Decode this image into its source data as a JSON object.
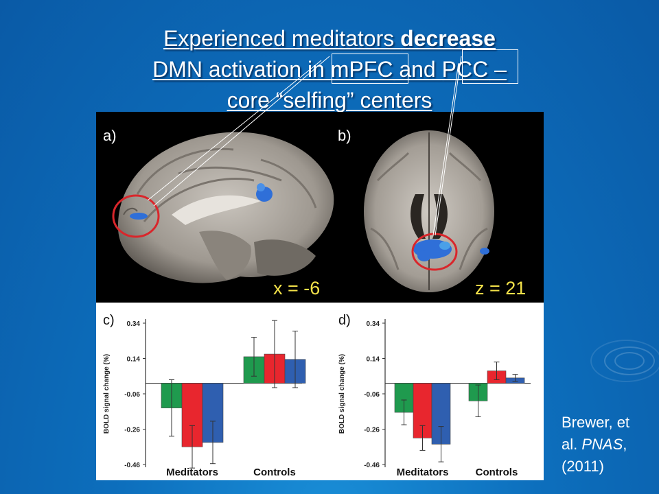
{
  "slide": {
    "title_line1_a": "Experienced meditators ",
    "title_line1_b": "decrease",
    "title_line2_a": "DMN activation in ",
    "title_line2_b": "mPFC",
    "title_line2_c": " and ",
    "title_line2_d": "PCC",
    "title_line2_e": " –",
    "title_line3": "core “selfing” centers",
    "citation_line1": "Brewer, et",
    "citation_line2a": "al.  ",
    "citation_line2b": "PNAS",
    "citation_line2c": ",",
    "citation_line3": "(2011)"
  },
  "figure": {
    "panel_a_label": "a)",
    "panel_b_label": "b)",
    "panel_a_coord": "x = -6",
    "panel_b_coord": "z = 21"
  },
  "colors": {
    "green": "#1f9a4e",
    "red": "#e8262e",
    "blue": "#2f5fb0",
    "activation": "#2f6fd8",
    "circle": "#d9262b"
  },
  "chart_data": [
    {
      "type": "bar",
      "panel_label": "c)",
      "ylabel": "BOLD signal change (%)",
      "yticks": [
        "0.34",
        "0.14",
        "-0.06",
        "-0.26",
        "-0.46"
      ],
      "ylim": [
        -0.46,
        0.34
      ],
      "categories": [
        "Meditators",
        "Controls"
      ],
      "series": [
        {
          "color": "#1f9a4e",
          "values": [
            -0.14,
            0.15
          ],
          "errors": [
            0.16,
            0.11
          ]
        },
        {
          "color": "#e8262e",
          "values": [
            -0.36,
            0.165
          ],
          "errors": [
            0.12,
            0.19
          ]
        },
        {
          "color": "#2f5fb0",
          "values": [
            -0.335,
            0.135
          ],
          "errors": [
            0.12,
            0.16
          ]
        }
      ]
    },
    {
      "type": "bar",
      "panel_label": "d)",
      "ylabel": "BOLD signal change (%)",
      "yticks": [
        "0.34",
        "0.14",
        "-0.06",
        "-0.26",
        "-0.46"
      ],
      "ylim": [
        -0.46,
        0.34
      ],
      "categories": [
        "Meditators",
        "Controls"
      ],
      "series": [
        {
          "color": "#1f9a4e",
          "values": [
            -0.165,
            -0.1
          ],
          "errors": [
            0.07,
            0.09
          ]
        },
        {
          "color": "#e8262e",
          "values": [
            -0.31,
            0.07
          ],
          "errors": [
            0.07,
            0.05
          ]
        },
        {
          "color": "#2f5fb0",
          "values": [
            -0.345,
            0.03
          ],
          "errors": [
            0.1,
            0.02
          ]
        }
      ]
    }
  ]
}
